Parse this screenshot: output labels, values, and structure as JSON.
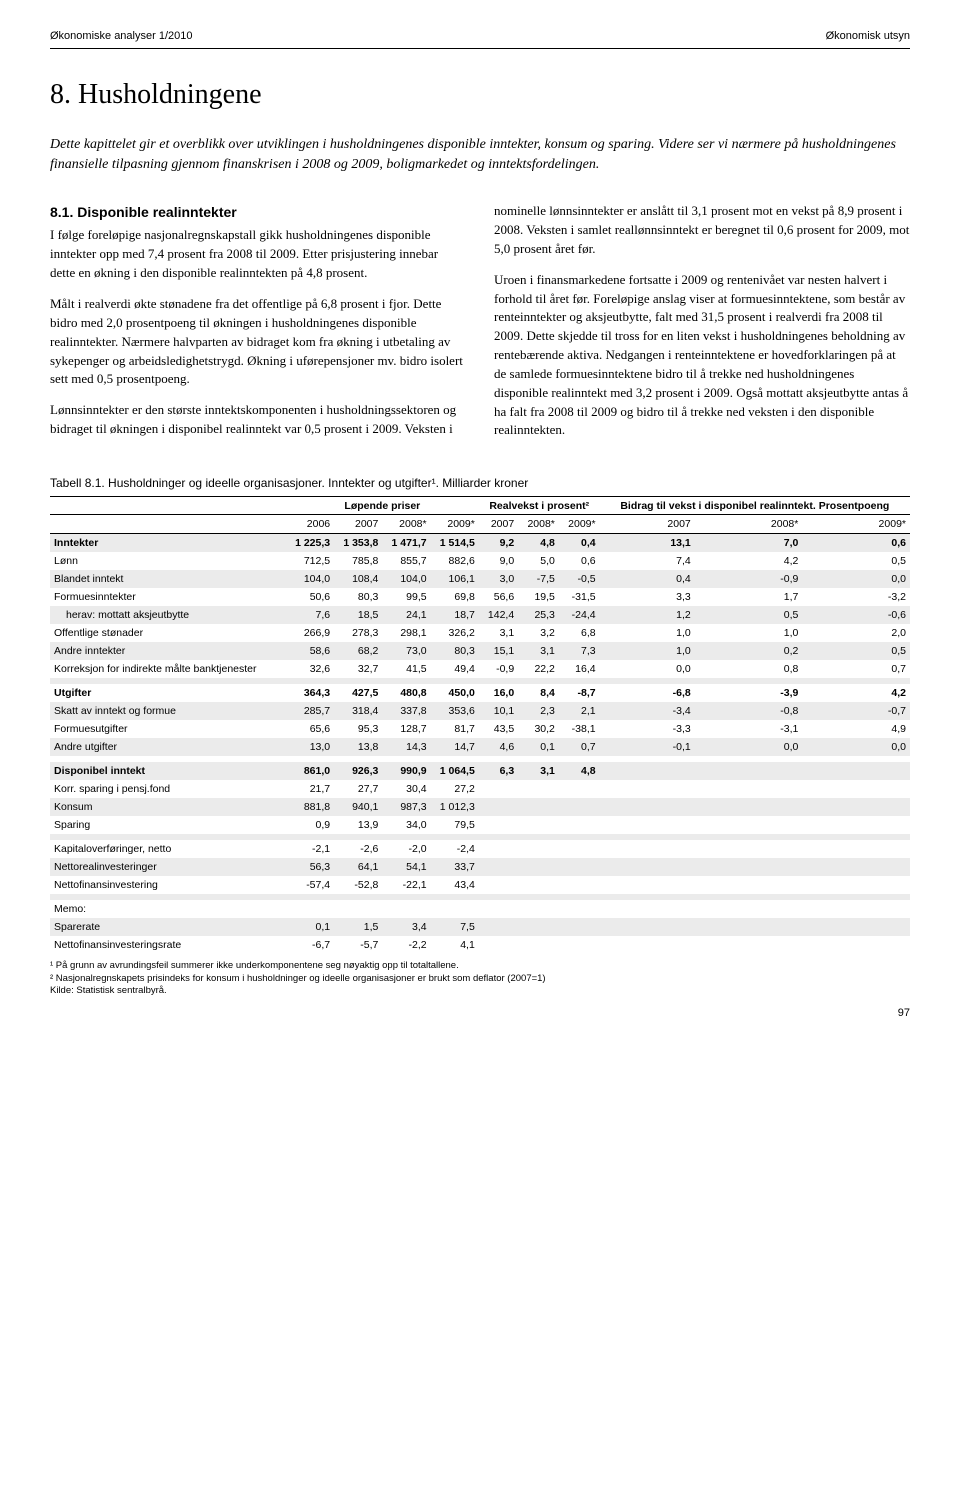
{
  "header": {
    "left": "Økonomiske analyser 1/2010",
    "right": "Økonomisk utsyn"
  },
  "title": "8. Husholdningene",
  "intro": "Dette kapittelet gir et overblikk over utviklingen i husholdningenes disponible inntekter, konsum og sparing. Videre ser vi nærmere på husholdningenes finansielle tilpasning gjennom finanskrisen i 2008 og 2009, boligmarkedet og inntektsfordelingen.",
  "left_col": {
    "heading": "8.1.  Disponible realinntekter",
    "p1": "I følge foreløpige nasjonalregnskapstall gikk husholdningenes disponible inntekter opp med 7,4 prosent fra 2008 til 2009. Etter prisjustering innebar dette en økning i den disponible realinntekten på 4,8 prosent.",
    "p2": "Målt i realverdi økte stønadene fra det offentlige på 6,8 prosent i fjor. Dette bidro med 2,0 prosentpoeng til økningen i husholdningenes disponible realinntekter. Nærmere halvparten av bidraget kom fra økning i utbetaling av sykepenger og arbeidsledighetstrygd. Økning i uførepensjoner mv. bidro isolert sett med 0,5 prosentpoeng.",
    "p3": "Lønnsinntekter er den største inntektskomponenten i husholdningssektoren og bidraget til økningen i disponibel realinntekt var 0,5 prosent i 2009. Veksten i"
  },
  "right_col": {
    "p1": "nominelle lønnsinntekter er anslått til 3,1 prosent mot en vekst på 8,9 prosent i 2008. Veksten i samlet reallønnsinntekt er beregnet til 0,6 prosent for 2009, mot 5,0 prosent året før.",
    "p2": "Uroen i finansmarkedene fortsatte i 2009 og rentenivået var nesten halvert i forhold til året før. Foreløpige anslag viser at formuesinntektene, som består av renteinntekter og aksjeutbytte, falt med 31,5 prosent i realverdi fra 2008 til 2009. Dette skjedde til tross for en liten vekst i husholdningenes beholdning av rentebærende aktiva. Nedgangen i renteinntektene er hovedforklaringen på at de samlede formuesinntektene bidro til å trekke ned husholdningenes disponible realinntekt med 3,2 prosent i 2009. Også mottatt aksjeutbytte antas å ha falt fra 2008 til 2009 og bidro til å trekke ned veksten i den disponible realinntekten."
  },
  "table": {
    "caption": "Tabell 8.1. Husholdninger og ideelle organisasjoner. Inntekter og utgifter¹. Milliarder kroner",
    "group_headers": [
      "Løpende priser",
      "Realvekst i prosent²",
      "Bidrag til vekst i disponibel realinntekt. Prosentpoeng"
    ],
    "years": [
      "2006",
      "2007",
      "2008*",
      "2009*",
      "2007",
      "2008*",
      "2009*",
      "2007",
      "2008*",
      "2009*"
    ],
    "rows": [
      {
        "label": "Inntekter",
        "vals": [
          "1 225,3",
          "1 353,8",
          "1 471,7",
          "1 514,5",
          "9,2",
          "4,8",
          "0,4",
          "13,1",
          "7,0",
          "0,6"
        ],
        "band": true,
        "bold": true
      },
      {
        "label": "Lønn",
        "vals": [
          "712,5",
          "785,8",
          "855,7",
          "882,6",
          "9,0",
          "5,0",
          "0,6",
          "7,4",
          "4,2",
          "0,5"
        ]
      },
      {
        "label": "Blandet inntekt",
        "vals": [
          "104,0",
          "108,4",
          "104,0",
          "106,1",
          "3,0",
          "-7,5",
          "-0,5",
          "0,4",
          "-0,9",
          "0,0"
        ],
        "band": true
      },
      {
        "label": "Formuesinntekter",
        "vals": [
          "50,6",
          "80,3",
          "99,5",
          "69,8",
          "56,6",
          "19,5",
          "-31,5",
          "3,3",
          "1,7",
          "-3,2"
        ]
      },
      {
        "label": "herav: mottatt aksjeutbytte",
        "vals": [
          "7,6",
          "18,5",
          "24,1",
          "18,7",
          "142,4",
          "25,3",
          "-24,4",
          "1,2",
          "0,5",
          "-0,6"
        ],
        "band": true,
        "indent": true
      },
      {
        "label": "Offentlige stønader",
        "vals": [
          "266,9",
          "278,3",
          "298,1",
          "326,2",
          "3,1",
          "3,2",
          "6,8",
          "1,0",
          "1,0",
          "2,0"
        ]
      },
      {
        "label": "Andre inntekter",
        "vals": [
          "58,6",
          "68,2",
          "73,0",
          "80,3",
          "15,1",
          "3,1",
          "7,3",
          "1,0",
          "0,2",
          "0,5"
        ],
        "band": true
      },
      {
        "label": "Korreksjon for indirekte målte banktjenester",
        "vals": [
          "32,6",
          "32,7",
          "41,5",
          "49,4",
          "-0,9",
          "22,2",
          "16,4",
          "0,0",
          "0,8",
          "0,7"
        ]
      },
      {
        "label": "",
        "vals": [
          "",
          "",
          "",
          "",
          "",
          "",
          "",
          "",
          "",
          ""
        ],
        "band": true,
        "spacer": true
      },
      {
        "label": "Utgifter",
        "vals": [
          "364,3",
          "427,5",
          "480,8",
          "450,0",
          "16,0",
          "8,4",
          "-8,7",
          "-6,8",
          "-3,9",
          "4,2"
        ],
        "bold": true
      },
      {
        "label": "Skatt av inntekt og formue",
        "vals": [
          "285,7",
          "318,4",
          "337,8",
          "353,6",
          "10,1",
          "2,3",
          "2,1",
          "-3,4",
          "-0,8",
          "-0,7"
        ],
        "band": true
      },
      {
        "label": "Formuesutgifter",
        "vals": [
          "65,6",
          "95,3",
          "128,7",
          "81,7",
          "43,5",
          "30,2",
          "-38,1",
          "-3,3",
          "-3,1",
          "4,9"
        ]
      },
      {
        "label": "Andre utgifter",
        "vals": [
          "13,0",
          "13,8",
          "14,3",
          "14,7",
          "4,6",
          "0,1",
          "0,7",
          "-0,1",
          "0,0",
          "0,0"
        ],
        "band": true
      },
      {
        "label": "",
        "vals": [
          "",
          "",
          "",
          "",
          "",
          "",
          "",
          "",
          "",
          ""
        ],
        "spacer": true
      },
      {
        "label": "Disponibel inntekt",
        "vals": [
          "861,0",
          "926,3",
          "990,9",
          "1 064,5",
          "6,3",
          "3,1",
          "4,8",
          "",
          "",
          ""
        ],
        "band": true,
        "bold": true
      },
      {
        "label": "Korr. sparing i pensj.fond",
        "vals": [
          "21,7",
          "27,7",
          "30,4",
          "27,2",
          "",
          "",
          "",
          "",
          "",
          ""
        ]
      },
      {
        "label": "Konsum",
        "vals": [
          "881,8",
          "940,1",
          "987,3",
          "1 012,3",
          "",
          "",
          "",
          "",
          "",
          ""
        ],
        "band": true
      },
      {
        "label": "Sparing",
        "vals": [
          "0,9",
          "13,9",
          "34,0",
          "79,5",
          "",
          "",
          "",
          "",
          "",
          ""
        ]
      },
      {
        "label": "",
        "vals": [
          "",
          "",
          "",
          "",
          "",
          "",
          "",
          "",
          "",
          ""
        ],
        "band": true,
        "spacer": true
      },
      {
        "label": "Kapitaloverføringer, netto",
        "vals": [
          "-2,1",
          "-2,6",
          "-2,0",
          "-2,4",
          "",
          "",
          "",
          "",
          "",
          ""
        ]
      },
      {
        "label": "Nettorealinvesteringer",
        "vals": [
          "56,3",
          "64,1",
          "54,1",
          "33,7",
          "",
          "",
          "",
          "",
          "",
          ""
        ],
        "band": true
      },
      {
        "label": "Nettofinansinvestering",
        "vals": [
          "-57,4",
          "-52,8",
          "-22,1",
          "43,4",
          "",
          "",
          "",
          "",
          "",
          ""
        ]
      },
      {
        "label": "",
        "vals": [
          "",
          "",
          "",
          "",
          "",
          "",
          "",
          "",
          "",
          ""
        ],
        "band": true,
        "spacer": true
      },
      {
        "label": "Memo:",
        "vals": [
          "",
          "",
          "",
          "",
          "",
          "",
          "",
          "",
          "",
          ""
        ]
      },
      {
        "label": "Sparerate",
        "vals": [
          "0,1",
          "1,5",
          "3,4",
          "7,5",
          "",
          "",
          "",
          "",
          "",
          ""
        ],
        "band": true
      },
      {
        "label": "Nettofinansinvesteringsrate",
        "vals": [
          "-6,7",
          "-5,7",
          "-2,2",
          "4,1",
          "",
          "",
          "",
          "",
          "",
          ""
        ]
      }
    ],
    "footnotes": [
      "¹ På grunn av avrundingsfeil summerer ikke underkomponentene seg nøyaktig opp til totaltallene.",
      "² Nasjonalregnskapets prisindeks for konsum i husholdninger og ideelle organisasjoner er brukt som deflator (2007=1)",
      "Kilde: Statistisk sentralbyrå."
    ]
  },
  "pagenum": "97"
}
